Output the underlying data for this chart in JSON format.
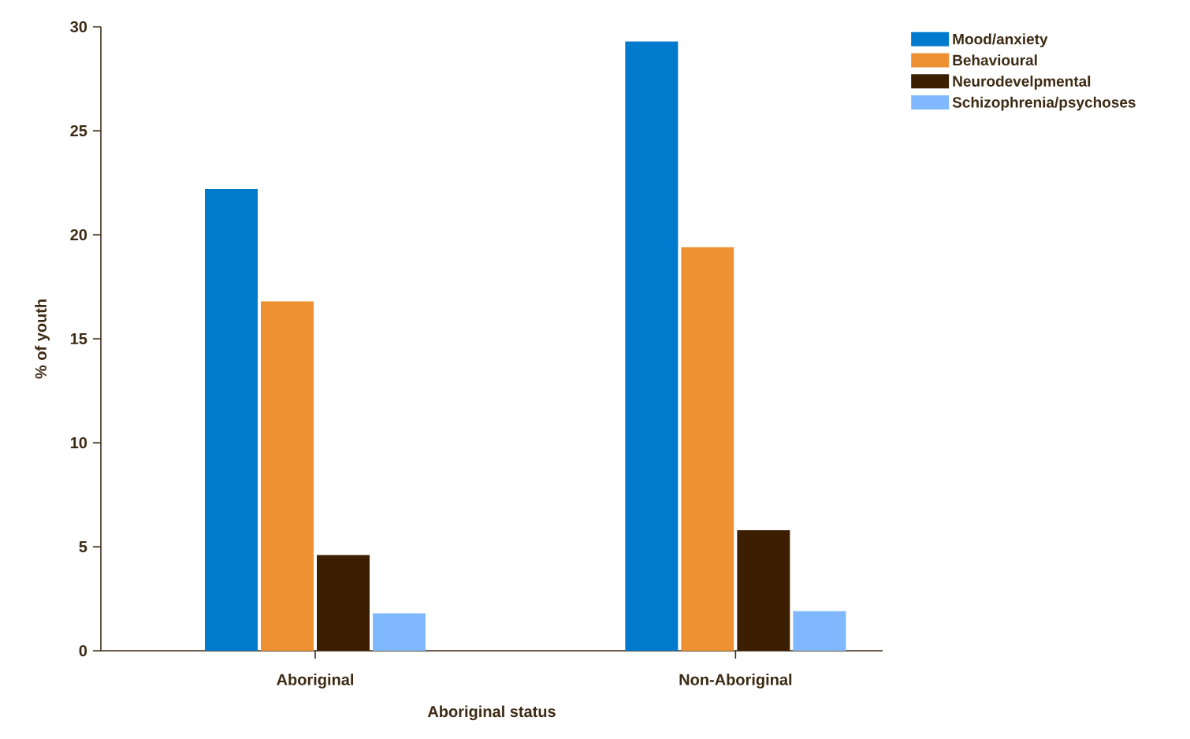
{
  "chart_data": {
    "type": "bar",
    "xlabel": "Aboriginal status",
    "ylabel": "% of youth",
    "categories": [
      "Aboriginal",
      "Non-Aboriginal"
    ],
    "series": [
      {
        "name": "Mood/anxiety",
        "color": "#007acc",
        "values": [
          22.2,
          29.3
        ]
      },
      {
        "name": "Behavioural",
        "color": "#ee9133",
        "values": [
          16.8,
          19.4
        ]
      },
      {
        "name": "Neurodevelpmental",
        "color": "#3c1e00",
        "values": [
          4.6,
          5.8
        ]
      },
      {
        "name": "Schizophrenia/psychoses",
        "color": "#80b8ff",
        "values": [
          1.8,
          1.9
        ]
      }
    ],
    "ylim": [
      0,
      30
    ],
    "yticks": [
      0,
      5,
      10,
      15,
      20,
      25,
      30
    ],
    "grid": false,
    "legend": "top right"
  }
}
